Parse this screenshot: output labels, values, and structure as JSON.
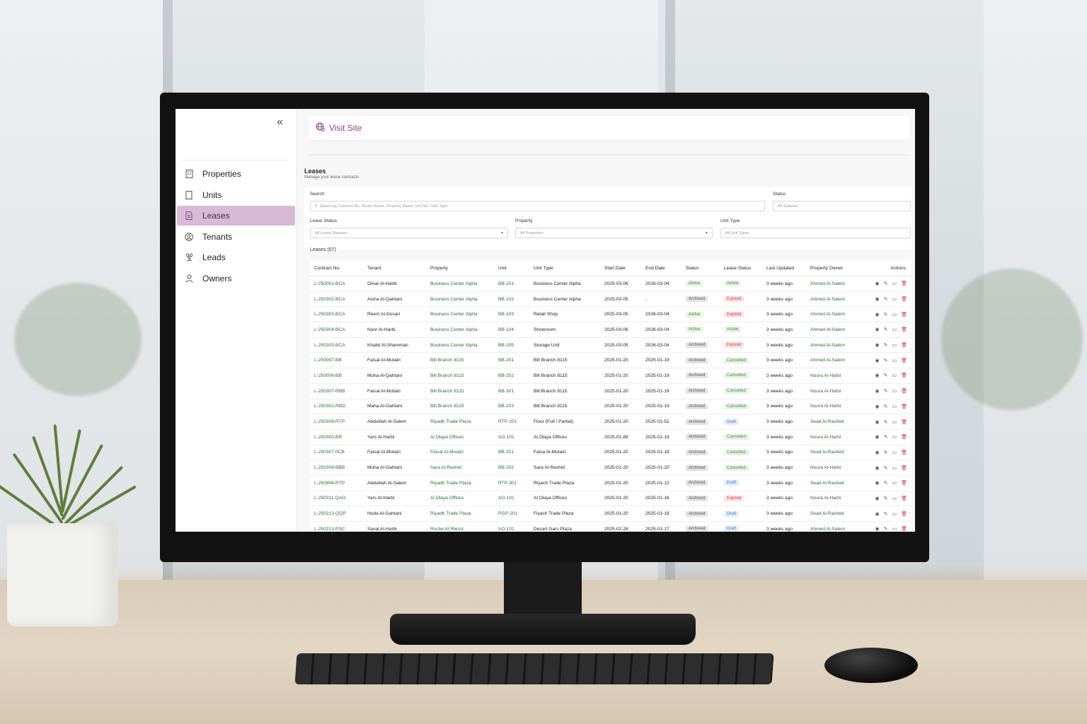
{
  "sidebar": {
    "collapse_glyph": "«",
    "items": [
      {
        "label": "Properties",
        "icon": "building-icon",
        "active": false
      },
      {
        "label": "Units",
        "icon": "door-icon",
        "active": false
      },
      {
        "label": "Leases",
        "icon": "document-icon",
        "active": true
      },
      {
        "label": "Tenants",
        "icon": "user-circle-icon",
        "active": false
      },
      {
        "label": "Leads",
        "icon": "users-icon",
        "active": false
      },
      {
        "label": "Owners",
        "icon": "user-icon",
        "active": false
      }
    ]
  },
  "topbar": {
    "visit_site": "Visit Site"
  },
  "page": {
    "title": "Leases",
    "subtitle": "Manage your lease contracts"
  },
  "filters": {
    "search_label": "Search",
    "search_placeholder": "Search by Contract No, Tenant Name, Property Name, Unit No / Unit Type",
    "status_label": "Status",
    "status_placeholder": "All Statuses",
    "lease_status_label": "Lease Status",
    "lease_status_placeholder": "All Lease Statuses",
    "property_label": "Property",
    "property_placeholder": "All Properties",
    "unit_type_label": "Unit Type",
    "unit_type_placeholder": "All Unit Types"
  },
  "table": {
    "count_label": "Leases (67)",
    "columns": [
      "Contract No.",
      "Tenant",
      "Property",
      "Unit",
      "Unit Type",
      "Start Date",
      "End Date",
      "Status",
      "Lease Status",
      "Last Updated",
      "Property Owner",
      "Actions"
    ],
    "rows": [
      [
        "L-250001-BCA",
        "Omar Al-Harbi",
        "Business Center Alpha",
        "BB-101",
        "Business Center Alpha",
        "2025-03-06",
        "2026-03-04",
        "Active",
        "Active",
        "3 weeks ago",
        "Ahmed Al-Salem"
      ],
      [
        "L-250302-BCA",
        "Aisha Al-Qahtani",
        "Business Center Alpha",
        "BB-102",
        "Business Center Alpha",
        "2025-03-05",
        "-",
        "Archived",
        "Expired",
        "3 weeks ago",
        "Ahmed Al-Salem"
      ],
      [
        "L-250303-BCA",
        "Reem Al-Dosari",
        "Business Center Alpha",
        "BB-103",
        "Retail Shop",
        "2025-03-05",
        "2026-03-04",
        "Active",
        "Expired",
        "3 weeks ago",
        "Ahmed Al-Salem"
      ],
      [
        "L-250304-BCA",
        "Noor Al-Harbi",
        "Business Center Alpha",
        "BB-104",
        "Showroom",
        "2025-03-06",
        "2026-03-04",
        "Active",
        "Active",
        "3 weeks ago",
        "Ahmed Al-Salem"
      ],
      [
        "L-250303-BCA",
        "Khalid Al-Shammari",
        "Business Center Alpha",
        "BB-105",
        "Storage Unit",
        "2025-03-05",
        "2026-03-04",
        "Archived",
        "Expired",
        "3 weeks ago",
        "Ahmed Al-Salem"
      ],
      [
        "L-250007-BB",
        "Faisal Al-Mutairi",
        "Bill Branch 8115",
        "BB-201",
        "Bill Branch 8115",
        "2025-01-20",
        "2025-01-19",
        "Archived",
        "Cancelled",
        "3 weeks ago",
        "Ahmed Al-Salem"
      ],
      [
        "L-250006-BB",
        "Muha Al-Qahtani",
        "Bill Branch 8115",
        "BB-202",
        "Bill Branch 8115",
        "2025-01-20",
        "2025-01-19",
        "Archived",
        "Cancelled",
        "3 weeks ago",
        "Noura Al-Harbi"
      ],
      [
        "L-250307-RBB",
        "Faisal Al-Mutairi",
        "Bill Branch 8115",
        "BB-301",
        "Bill Branch 8115",
        "2025-01-20",
        "2025-01-19",
        "Archived",
        "Cancelled",
        "3 weeks ago",
        "Noura Al-Harbi"
      ],
      [
        "L-250302-RBD",
        "Maha Al-Gahtani",
        "Bill Branch 8115",
        "BB-203",
        "Bill Branch 8115",
        "2025-01-20",
        "2025-01-19",
        "Archived",
        "Cancelled",
        "3 weeks ago",
        "Noura Al-Harbi"
      ],
      [
        "L-250308-RTP",
        "Abdulilah Al-Salem",
        "Riyadh Trade Plaza",
        "RTP-201",
        "Floor (Full / Partial)",
        "2025-01-20",
        "2025-01-52",
        "Archived",
        "Draft",
        "3 weeks ago",
        "Sead Al-Rashed"
      ],
      [
        "L-250300-BR",
        "Yars Al-Harbi",
        "Al Olaya Offices",
        "AO-101",
        "Al Olaya Offices",
        "2025-01-89",
        "2025-01-19",
        "Archived",
        "Cancelled",
        "3 weeks ago",
        "Noura Al-Harbi"
      ],
      [
        "L-250307-0CB",
        "Faisal Al-Mutairi",
        "Feisal Al-Mutairi",
        "BB-201",
        "Faisa Al-Mutairi",
        "2025-01-20",
        "2025-01-18",
        "Archived",
        "Cancelled",
        "3 weeks ago",
        "Sead Al-Rashed"
      ],
      [
        "L-250308-BBB",
        "Muha Al-Gahtani",
        "Sara Al-Reshid",
        "BB-202",
        "Sara Al-Reshid",
        "2025-01-20",
        "2025-01-20",
        "Archived",
        "Cancelled",
        "3 weeks ago",
        "Noura Al-Harbi"
      ],
      [
        "L-250906-RTP",
        "Abdulilah Al-Salem",
        "Riyadh Trade Plaza",
        "RTP-301",
        "Riyach Trade Plaza",
        "2025-01-20",
        "2025-01-12",
        "Archived",
        "Draft",
        "3 weeks ago",
        "Sead Al-Rashed"
      ],
      [
        "L-250311-QAO",
        "Yars Al-Harbi",
        "Al Olaya Offices",
        "AO-101",
        "Al Olaya Offices",
        "2025-01-20",
        "2025-01-16",
        "Archived",
        "Expired",
        "3 weeks ago",
        "Noura Al-Harbi"
      ],
      [
        "L-250213-QQP",
        "Huda Al-Gahtani",
        "Riyadh Trade Plaza",
        "PGP-201",
        "Fiyach Trade Plaza",
        "2025-01-20",
        "2025-01-18",
        "Archived",
        "Draft",
        "3 weeks ago",
        "Sead Al-Rashed"
      ],
      [
        "L-250213-PSC",
        "Saval Al-Harbi",
        "Rocbe At Rlesst",
        "AO-101",
        "Decart Gars Plaza",
        "2025-02-26",
        "2025-01-17",
        "Archived",
        "Draft",
        "3 weeks ago",
        "Ahmed Al-Salem"
      ]
    ]
  },
  "colors": {
    "accent": "#8e3f8e",
    "active_nav_bg": "#d8b9d8",
    "link_green": "#2f6b2f",
    "status_active_bg": "#e6f4e1",
    "status_active_fg": "#3f8a3f",
    "status_archived_bg": "#e3e3e5",
    "status_archived_fg": "#555555",
    "lease_expired_bg": "#fde2e2",
    "lease_expired_fg": "#d14040",
    "lease_cancelled_bg": "#e4f3e4",
    "lease_cancelled_fg": "#4f8f4f",
    "lease_draft_bg": "#e3edf9",
    "lease_draft_fg": "#4a7ec0",
    "delete_red": "#d14040"
  }
}
